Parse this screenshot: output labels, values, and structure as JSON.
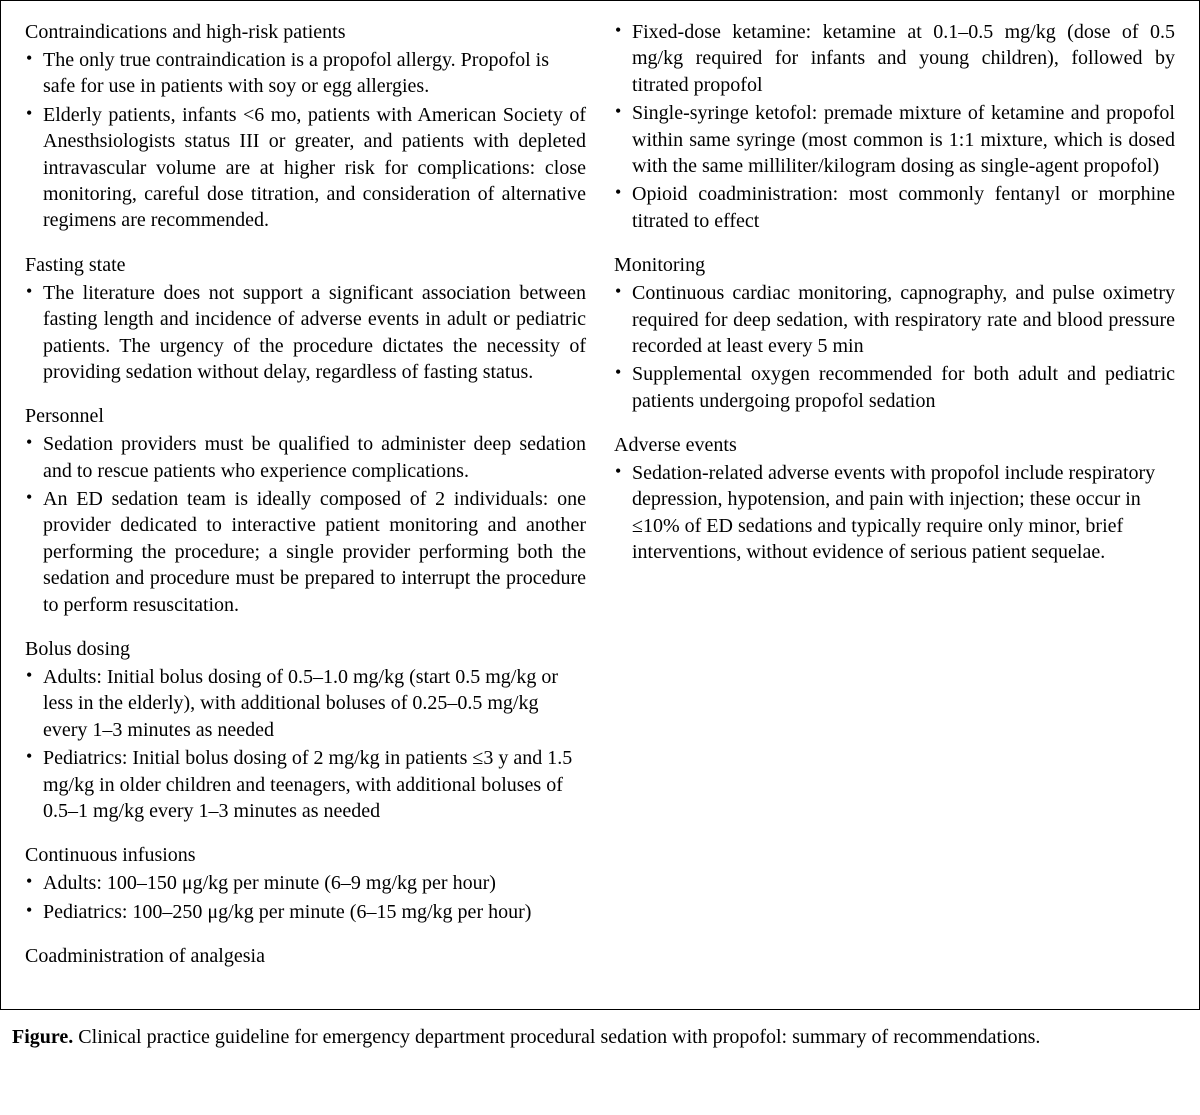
{
  "figure": {
    "caption_label": "Figure.",
    "caption_text": "Clinical practice guideline for emergency department procedural sedation with propofol: summary of recommendations."
  },
  "sections": [
    {
      "heading": "Contraindications and high-risk patients",
      "first": true,
      "items": [
        {
          "text": "The only true contraindication is a propofol allergy. Propofol is safe for use in patients with soy or egg allergies.",
          "justify": false
        },
        {
          "text": "Elderly patients, infants <6 mo, patients with American Society of Anesthsiologists status III or greater, and patients with depleted intravascular volume are at higher risk for complications: close monitoring, careful dose titration, and consideration of alternative regimens are recommended.",
          "justify": true
        }
      ]
    },
    {
      "heading": "Fasting state",
      "items": [
        {
          "text": "The literature does not support a significant association between fasting length and incidence of adverse events in adult or pediatric patients. The urgency of the procedure dictates the necessity of providing sedation without delay, regardless of fasting status.",
          "justify": true
        }
      ]
    },
    {
      "heading": "Personnel",
      "items": [
        {
          "text": "Sedation providers must be qualified to administer deep sedation and to rescue patients who experience complications.",
          "justify": true
        },
        {
          "text": "An ED sedation team is ideally composed of 2 individuals: one provider dedicated to interactive patient monitoring and another performing the procedure; a single provider performing both the sedation and procedure must be prepared to interrupt the procedure to perform resuscitation.",
          "justify": true
        }
      ]
    },
    {
      "heading": "Bolus dosing",
      "items": [
        {
          "text": "Adults: Initial bolus dosing of 0.5–1.0 mg/kg (start 0.5 mg/kg or less in the elderly), with additional boluses of 0.25–0.5 mg/kg every 1–3 minutes as needed",
          "justify": false
        },
        {
          "text": "Pediatrics: Initial bolus dosing of 2 mg/kg in patients ≤3 y and 1.5 mg/kg in older children and teenagers, with additional boluses of 0.5–1 mg/kg every 1–3 minutes as needed",
          "justify": false
        }
      ]
    },
    {
      "heading": "Continuous infusions",
      "items": [
        {
          "text": "Adults: 100–150 μg/kg per minute (6–9 mg/kg per hour)",
          "justify": false
        },
        {
          "text": "Pediatrics: 100–250 μg/kg per minute (6–15 mg/kg per hour)",
          "justify": false
        }
      ]
    },
    {
      "heading": "Coadministration of analgesia",
      "items": [
        {
          "text": "Fixed-dose ketamine: ketamine at 0.1–0.5 mg/kg (dose of 0.5 mg/kg required for infants and young children), followed by titrated propofol",
          "justify": true
        },
        {
          "text": "Single-syringe ketofol: premade mixture of ketamine and propofol within same syringe (most common is 1:1 mixture, which is dosed with the same milliliter/kilogram dosing as single-agent propofol)",
          "justify": true
        },
        {
          "text": "Opioid coadministration: most commonly fentanyl or morphine titrated to effect",
          "justify": true
        }
      ]
    },
    {
      "heading": "Monitoring",
      "items": [
        {
          "text": "Continuous cardiac monitoring, capnography, and pulse oximetry required for deep sedation, with respiratory rate and blood pressure recorded at least every 5 min",
          "justify": true
        },
        {
          "text": "Supplemental oxygen recommended for both adult and pediatric patients undergoing propofol sedation",
          "justify": true
        }
      ]
    },
    {
      "heading": "Adverse events",
      "items": [
        {
          "text": "Sedation-related adverse events with propofol include respiratory depression, hypotension, and pain with injection; these occur in ≤10% of ED sedations and typically require only minor, brief interventions, without evidence of serious patient sequelae.",
          "justify": false
        }
      ]
    }
  ]
}
